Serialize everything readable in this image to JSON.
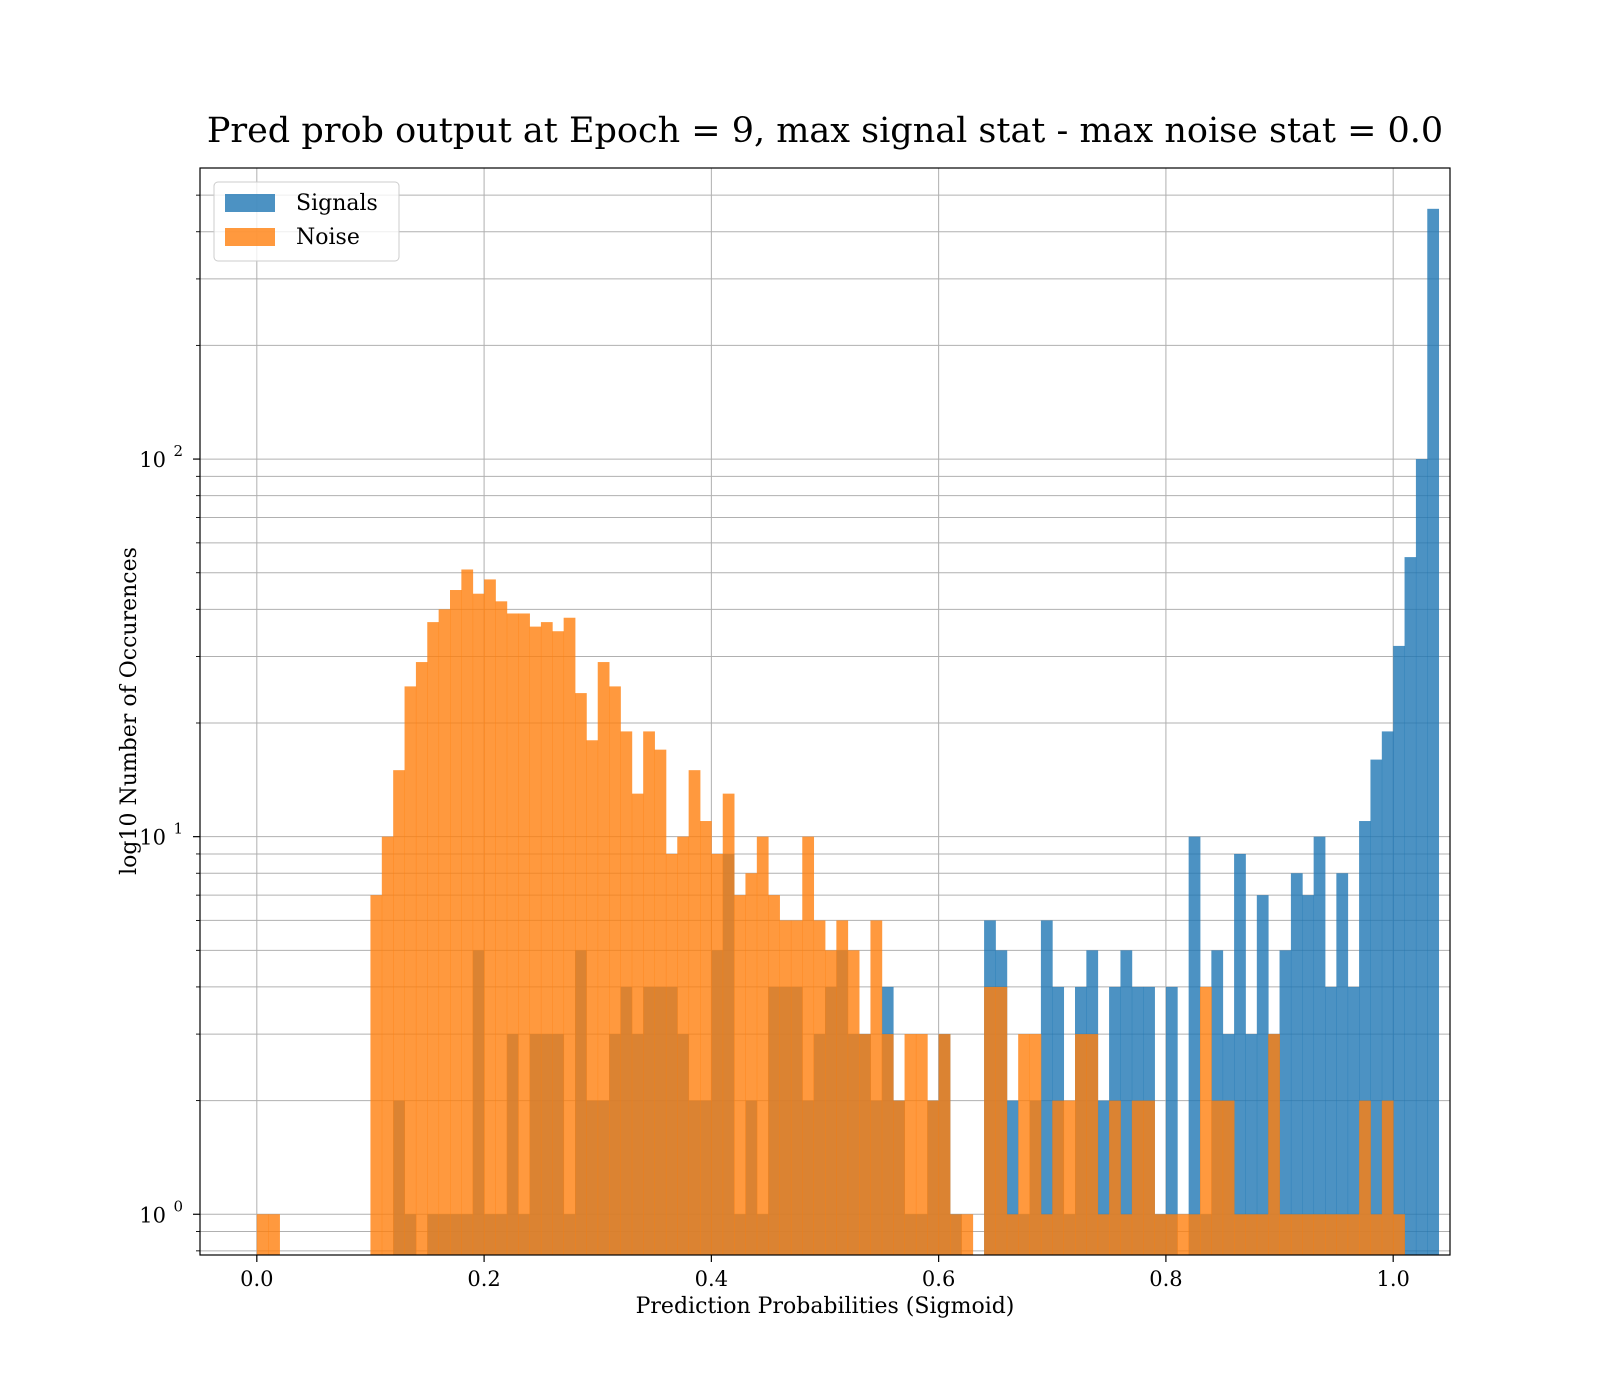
{
  "chart_data": {
    "type": "bar",
    "title": "Pred prob output at Epoch = 9, max signal stat - max noise stat = 0.0",
    "xlabel": "Prediction Probabilities (Sigmoid)",
    "ylabel": "log10 Number of Occurences",
    "xlim": [
      -0.05,
      1.05
    ],
    "ylim": [
      0.78,
      590
    ],
    "yscale": "log",
    "grid": true,
    "legend_position": "top-left",
    "bin_start": 0.0,
    "bin_width": 0.01,
    "x_ticks": [
      0.0,
      0.2,
      0.4,
      0.6,
      0.8,
      1.0
    ],
    "x_tick_labels": [
      "0.0",
      "0.2",
      "0.4",
      "0.6",
      "0.8",
      "1.0"
    ],
    "y_ticks": [
      {
        "value": 1,
        "base": "10",
        "exp": "0"
      },
      {
        "value": 10,
        "base": "10",
        "exp": "1"
      },
      {
        "value": 100,
        "base": "10",
        "exp": "2"
      }
    ],
    "series": [
      {
        "name": "Signals",
        "color": "#1f77b4",
        "values": [
          0,
          0,
          0,
          0,
          0,
          0,
          0,
          0,
          0,
          0,
          0,
          0,
          2,
          1,
          0,
          1,
          1,
          1,
          1,
          5,
          1,
          1,
          3,
          1,
          3,
          3,
          3,
          1,
          5,
          2,
          2,
          3,
          4,
          3,
          4,
          4,
          4,
          3,
          2,
          2,
          5,
          9,
          1,
          2,
          1,
          4,
          4,
          4,
          2,
          3,
          4,
          5,
          3,
          3,
          2,
          4,
          2,
          1,
          1,
          2,
          3,
          1,
          0,
          0,
          6,
          5,
          2,
          1,
          2,
          6,
          4,
          1,
          4,
          5,
          2,
          4,
          5,
          4,
          4,
          1,
          4,
          0,
          10,
          1,
          5,
          3,
          9,
          3,
          7,
          3,
          5,
          8,
          7,
          10,
          4,
          8,
          4,
          11,
          16,
          19,
          32,
          55,
          100,
          460
        ]
      },
      {
        "name": "Noise",
        "color": "#ff7f0e",
        "values": [
          1,
          1,
          0,
          0,
          0,
          0,
          0,
          0,
          0,
          0,
          7,
          10,
          15,
          25,
          29,
          37,
          40,
          45,
          51,
          44,
          48,
          42,
          39,
          39,
          36,
          37,
          35,
          38,
          24,
          18,
          29,
          25,
          19,
          13,
          19,
          17,
          9,
          10,
          15,
          11,
          9,
          13,
          7,
          8,
          10,
          7,
          6,
          6,
          10,
          6,
          5,
          6,
          5,
          3,
          6,
          3,
          2,
          3,
          3,
          2,
          3,
          1,
          1,
          0,
          4,
          4,
          1,
          3,
          3,
          1,
          2,
          2,
          3,
          3,
          1,
          2,
          1,
          2,
          2,
          1,
          1,
          1,
          1,
          4,
          2,
          2,
          1,
          1,
          1,
          3,
          1,
          1,
          1,
          1,
          1,
          1,
          1,
          2,
          1,
          2,
          1,
          0,
          0,
          0
        ]
      }
    ]
  }
}
